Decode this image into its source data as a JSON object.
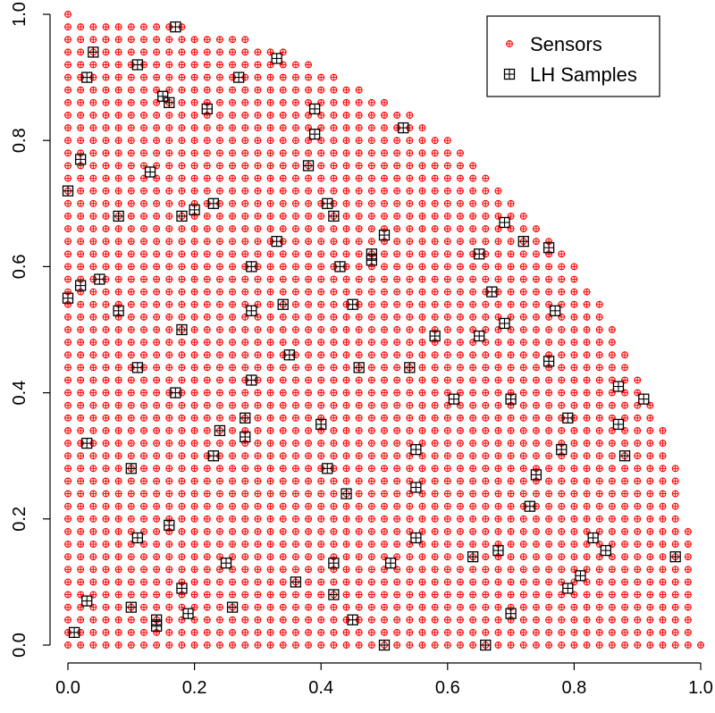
{
  "chart_data": {
    "type": "scatter",
    "xlim": [
      0,
      1
    ],
    "ylim": [
      0,
      1
    ],
    "x_ticks": [
      "0.0",
      "0.2",
      "0.4",
      "0.6",
      "0.8",
      "1.0"
    ],
    "y_ticks": [
      "0.0",
      "0.2",
      "0.4",
      "0.6",
      "0.8",
      "1.0"
    ],
    "grid": false,
    "legend_position": "top-right",
    "sensors_region": "quarter disk x>=0, y>=0, x^2+y^2<=1, regular grid spacing 0.02",
    "series": [
      {
        "name": "Sensors",
        "color": "#ff0000",
        "marker": "circle-plus",
        "grid_step": 0.02
      },
      {
        "name": "LH Samples",
        "color": "#000000",
        "marker": "square-plus",
        "points": [
          [
            0.17,
            0.98
          ],
          [
            0.33,
            0.93
          ],
          [
            0.04,
            0.94
          ],
          [
            0.11,
            0.92
          ],
          [
            0.03,
            0.9
          ],
          [
            0.27,
            0.9
          ],
          [
            0.15,
            0.87
          ],
          [
            0.16,
            0.86
          ],
          [
            0.22,
            0.85
          ],
          [
            0.39,
            0.85
          ],
          [
            0.53,
            0.82
          ],
          [
            0.39,
            0.81
          ],
          [
            0.02,
            0.77
          ],
          [
            0.38,
            0.76
          ],
          [
            0.13,
            0.75
          ],
          [
            0.0,
            0.72
          ],
          [
            0.23,
            0.7
          ],
          [
            0.41,
            0.7
          ],
          [
            0.08,
            0.68
          ],
          [
            0.2,
            0.69
          ],
          [
            0.18,
            0.68
          ],
          [
            0.42,
            0.68
          ],
          [
            0.69,
            0.67
          ],
          [
            0.5,
            0.65
          ],
          [
            0.33,
            0.64
          ],
          [
            0.72,
            0.64
          ],
          [
            0.76,
            0.63
          ],
          [
            0.65,
            0.62
          ],
          [
            0.48,
            0.62
          ],
          [
            0.48,
            0.61
          ],
          [
            0.29,
            0.6
          ],
          [
            0.43,
            0.6
          ],
          [
            0.05,
            0.58
          ],
          [
            0.02,
            0.57
          ],
          [
            0.67,
            0.56
          ],
          [
            0.0,
            0.55
          ],
          [
            0.45,
            0.54
          ],
          [
            0.34,
            0.54
          ],
          [
            0.08,
            0.53
          ],
          [
            0.29,
            0.53
          ],
          [
            0.77,
            0.53
          ],
          [
            0.69,
            0.51
          ],
          [
            0.18,
            0.5
          ],
          [
            0.58,
            0.49
          ],
          [
            0.65,
            0.49
          ],
          [
            0.35,
            0.46
          ],
          [
            0.76,
            0.45
          ],
          [
            0.11,
            0.44
          ],
          [
            0.46,
            0.44
          ],
          [
            0.54,
            0.44
          ],
          [
            0.29,
            0.42
          ],
          [
            0.87,
            0.41
          ],
          [
            0.17,
            0.4
          ],
          [
            0.61,
            0.39
          ],
          [
            0.7,
            0.39
          ],
          [
            0.91,
            0.39
          ],
          [
            0.28,
            0.36
          ],
          [
            0.79,
            0.36
          ],
          [
            0.87,
            0.35
          ],
          [
            0.4,
            0.35
          ],
          [
            0.24,
            0.34
          ],
          [
            0.28,
            0.33
          ],
          [
            0.03,
            0.32
          ],
          [
            0.55,
            0.31
          ],
          [
            0.78,
            0.31
          ],
          [
            0.23,
            0.3
          ],
          [
            0.88,
            0.3
          ],
          [
            0.41,
            0.28
          ],
          [
            0.1,
            0.28
          ],
          [
            0.74,
            0.27
          ],
          [
            0.55,
            0.25
          ],
          [
            0.44,
            0.24
          ],
          [
            0.73,
            0.22
          ],
          [
            0.16,
            0.19
          ],
          [
            0.11,
            0.17
          ],
          [
            0.55,
            0.17
          ],
          [
            0.83,
            0.17
          ],
          [
            0.85,
            0.15
          ],
          [
            0.68,
            0.15
          ],
          [
            0.96,
            0.14
          ],
          [
            0.64,
            0.14
          ],
          [
            0.25,
            0.13
          ],
          [
            0.42,
            0.13
          ],
          [
            0.51,
            0.13
          ],
          [
            0.81,
            0.11
          ],
          [
            0.36,
            0.1
          ],
          [
            0.18,
            0.09
          ],
          [
            0.79,
            0.09
          ],
          [
            0.42,
            0.08
          ],
          [
            0.03,
            0.07
          ],
          [
            0.1,
            0.06
          ],
          [
            0.26,
            0.06
          ],
          [
            0.19,
            0.05
          ],
          [
            0.7,
            0.05
          ],
          [
            0.45,
            0.04
          ],
          [
            0.14,
            0.04
          ],
          [
            0.14,
            0.03
          ],
          [
            0.01,
            0.02
          ],
          [
            0.5,
            0.0
          ],
          [
            0.66,
            0.0
          ]
        ]
      }
    ]
  }
}
